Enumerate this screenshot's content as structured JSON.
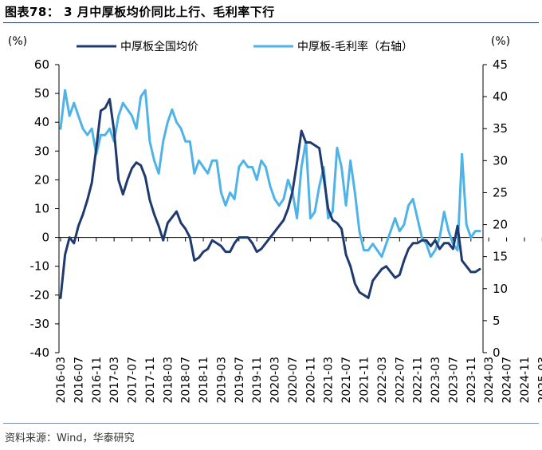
{
  "header": {
    "title": "图表78： 3 月中厚板均价同比上行、毛利率下行"
  },
  "footer": {
    "source": "资料来源：Wind，华泰研究"
  },
  "chart_data": {
    "type": "line",
    "y_unit_left": "(%)",
    "y_unit_right": "(%)",
    "ylim_left": [
      -40,
      60
    ],
    "yticks_left": [
      "60",
      "50",
      "40",
      "30",
      "20",
      "10",
      "0",
      "-10",
      "-20",
      "-30",
      "-40"
    ],
    "ylim_right": [
      0,
      45
    ],
    "yticks_right": [
      "45",
      "40",
      "35",
      "30",
      "25",
      "20",
      "15",
      "10",
      "5",
      "0"
    ],
    "x_tick_labels": [
      "2016-03",
      "2016-07",
      "2016-11",
      "2017-03",
      "2017-07",
      "2017-11",
      "2018-03",
      "2018-07",
      "2018-11",
      "2019-03",
      "2019-07",
      "2019-11",
      "2020-03",
      "2020-07",
      "2020-11",
      "2021-03",
      "2021-07",
      "2021-11",
      "2022-03",
      "2022-07",
      "2022-11",
      "2023-03",
      "2023-07",
      "2023-11",
      "2024-03",
      "2024-07",
      "2024-11",
      "2025-03"
    ],
    "legend_position": "top",
    "grid": false,
    "colors": {
      "price": "#1f3a6e",
      "margin": "#4fb3e8"
    },
    "series": [
      {
        "name": "中厚板全国均价",
        "axis": "left",
        "color": "#1f3a6e",
        "values": [
          -21,
          -6,
          0,
          -2,
          4,
          8,
          13,
          19,
          31,
          44,
          45,
          48,
          37,
          20,
          15,
          20,
          24,
          26,
          25,
          21,
          13,
          8,
          4,
          -1,
          5,
          7,
          9,
          5,
          3,
          0,
          -8,
          -7,
          -5,
          -4,
          -1,
          -2,
          -3,
          -5,
          -5,
          -2,
          0,
          0,
          0,
          -2,
          -5,
          -4,
          -2,
          0,
          2,
          4,
          6,
          10,
          16,
          26,
          37,
          33,
          33,
          32,
          31,
          21,
          10,
          6,
          5,
          3,
          -6,
          -10,
          -16,
          -19,
          -20,
          -21,
          -15,
          -13,
          -11,
          -10,
          -12,
          -14,
          -13,
          -8,
          -4,
          -2,
          -2,
          -1,
          -1,
          -3,
          -1,
          -4,
          -2,
          -2,
          -4,
          4,
          -8,
          -10,
          -12,
          -12,
          -11
        ]
      },
      {
        "name": "中厚板-毛利率（右轴）",
        "axis": "right",
        "color": "#4fb3e8",
        "values": [
          35,
          41,
          37,
          39,
          37,
          35,
          34,
          35,
          31,
          34,
          34,
          35,
          33,
          37,
          39,
          38,
          37,
          35,
          40,
          41,
          33,
          30,
          28,
          33,
          36,
          38,
          36,
          35,
          33,
          33,
          28,
          30,
          29,
          28,
          30,
          30,
          25,
          23,
          25,
          24,
          29,
          30,
          29,
          29,
          27,
          30,
          29,
          26,
          24,
          23,
          24,
          27,
          25,
          21,
          29,
          33,
          21,
          22,
          26,
          29,
          21,
          22,
          32,
          29,
          23,
          30,
          25,
          19,
          16,
          16,
          17,
          16,
          15,
          17,
          19,
          21,
          19,
          20,
          23,
          24,
          21,
          18,
          17,
          15,
          16,
          18,
          22,
          19,
          17,
          16,
          31,
          20,
          18,
          19,
          19
        ]
      }
    ]
  }
}
